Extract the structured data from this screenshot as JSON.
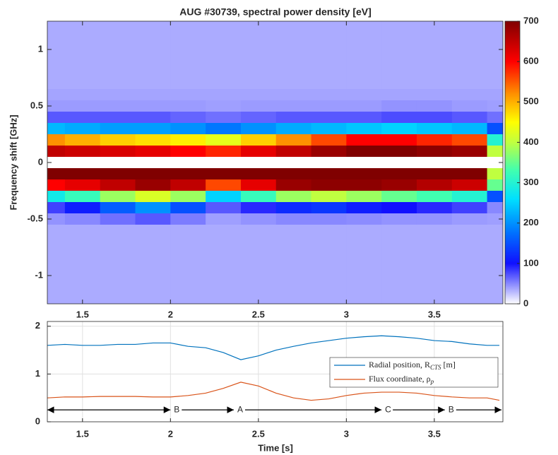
{
  "chart_data": [
    {
      "type": "heatmap",
      "title": "AUG #30739, spectral power density [eV]",
      "ylabel": "Frequency shift [GHz]",
      "x": [
        1.3,
        1.5,
        1.7,
        1.9,
        2.1,
        2.3,
        2.5,
        2.7,
        2.9,
        3.1,
        3.3,
        3.5,
        3.7,
        3.9
      ],
      "y": [
        1.2,
        1.1,
        1.0,
        0.9,
        0.8,
        0.7,
        0.6,
        0.5,
        0.4,
        0.3,
        0.2,
        0.1,
        0.0,
        -0.1,
        -0.2,
        -0.3,
        -0.4,
        -0.5,
        -0.6,
        -0.7,
        -0.8,
        -0.9,
        -1.0,
        -1.1,
        -1.2
      ],
      "z": [
        [
          35,
          35,
          35,
          35,
          35,
          35,
          35,
          35,
          35,
          35,
          35,
          35,
          35,
          35
        ],
        [
          35,
          35,
          35,
          35,
          35,
          35,
          35,
          35,
          35,
          35,
          35,
          35,
          35,
          35
        ],
        [
          35,
          35,
          35,
          35,
          35,
          35,
          35,
          35,
          35,
          35,
          35,
          35,
          35,
          35
        ],
        [
          35,
          35,
          35,
          35,
          35,
          35,
          35,
          35,
          35,
          35,
          35,
          35,
          35,
          35
        ],
        [
          35,
          35,
          35,
          35,
          35,
          35,
          35,
          35,
          35,
          35,
          35,
          35,
          35,
          35
        ],
        [
          35,
          35,
          35,
          35,
          35,
          35,
          35,
          35,
          35,
          35,
          35,
          35,
          35,
          35
        ],
        [
          38,
          38,
          38,
          38,
          38,
          38,
          38,
          38,
          38,
          38,
          38,
          38,
          38,
          38
        ],
        [
          42,
          42,
          42,
          42,
          42,
          40,
          42,
          42,
          42,
          42,
          45,
          45,
          42,
          40
        ],
        [
          70,
          70,
          70,
          70,
          65,
          60,
          65,
          70,
          70,
          70,
          75,
          75,
          70,
          60
        ],
        [
          230,
          220,
          210,
          210,
          200,
          180,
          200,
          220,
          230,
          240,
          250,
          240,
          230,
          150
        ],
        [
          520,
          500,
          480,
          470,
          460,
          430,
          480,
          520,
          560,
          600,
          600,
          580,
          560,
          300
        ],
        [
          650,
          640,
          630,
          620,
          600,
          580,
          620,
          650,
          680,
          700,
          700,
          690,
          680,
          400
        ],
        [
          0,
          0,
          0,
          0,
          0,
          0,
          0,
          0,
          0,
          0,
          0,
          0,
          0,
          0
        ],
        [
          700,
          700,
          700,
          700,
          700,
          700,
          700,
          700,
          700,
          700,
          700,
          700,
          700,
          400
        ],
        [
          600,
          620,
          650,
          680,
          650,
          560,
          620,
          680,
          690,
          690,
          680,
          660,
          640,
          350
        ],
        [
          280,
          320,
          380,
          420,
          380,
          250,
          320,
          380,
          400,
          380,
          350,
          330,
          300,
          150
        ],
        [
          80,
          110,
          160,
          200,
          150,
          70,
          90,
          120,
          130,
          110,
          100,
          90,
          80,
          50
        ],
        [
          45,
          50,
          60,
          70,
          55,
          40,
          45,
          50,
          50,
          48,
          45,
          45,
          42,
          40
        ],
        [
          35,
          35,
          35,
          35,
          35,
          35,
          35,
          35,
          35,
          35,
          35,
          35,
          35,
          35
        ],
        [
          35,
          35,
          35,
          35,
          35,
          35,
          35,
          35,
          35,
          35,
          35,
          35,
          35,
          35
        ],
        [
          35,
          35,
          35,
          35,
          35,
          35,
          35,
          35,
          35,
          35,
          35,
          35,
          35,
          35
        ],
        [
          35,
          35,
          35,
          35,
          35,
          35,
          35,
          35,
          35,
          35,
          35,
          35,
          35,
          35
        ],
        [
          35,
          35,
          35,
          35,
          35,
          35,
          35,
          35,
          35,
          35,
          35,
          35,
          35,
          35
        ],
        [
          35,
          35,
          35,
          35,
          35,
          35,
          35,
          35,
          35,
          35,
          35,
          35,
          35,
          35
        ],
        [
          35,
          35,
          35,
          35,
          35,
          35,
          35,
          35,
          35,
          35,
          35,
          35,
          35,
          35
        ]
      ],
      "xlim": [
        1.3,
        3.89
      ],
      "xticks": [
        1.5,
        2,
        2.5,
        3,
        3.5
      ],
      "ylim": [
        -1.25,
        1.25
      ],
      "yticks": [
        1,
        0.5,
        0,
        -0.5,
        -1
      ],
      "clim": [
        0,
        700
      ],
      "cticks": [
        0,
        100,
        200,
        300,
        400,
        500,
        600,
        700
      ],
      "colormap": [
        {
          "value": 0,
          "color": "#ffffff"
        },
        {
          "value": 100,
          "color": "#1010ff"
        },
        {
          "value": 175,
          "color": "#0070ff"
        },
        {
          "value": 260,
          "color": "#00e0ff"
        },
        {
          "value": 330,
          "color": "#40ffb0"
        },
        {
          "value": 400,
          "color": "#c0ff40"
        },
        {
          "value": 450,
          "color": "#ffff00"
        },
        {
          "value": 520,
          "color": "#ff9000"
        },
        {
          "value": 600,
          "color": "#ff0000"
        },
        {
          "value": 700,
          "color": "#800000"
        }
      ]
    },
    {
      "type": "line",
      "xlabel": "Time [s]",
      "x": [
        1.3,
        1.4,
        1.5,
        1.6,
        1.7,
        1.8,
        1.9,
        2.0,
        2.1,
        2.2,
        2.3,
        2.4,
        2.5,
        2.6,
        2.7,
        2.8,
        2.9,
        3.0,
        3.1,
        3.2,
        3.3,
        3.4,
        3.5,
        3.6,
        3.7,
        3.8,
        3.87
      ],
      "series": [
        {
          "name": "Radial position, R_CTS [m]",
          "color": "#0072bd",
          "values": [
            1.6,
            1.62,
            1.6,
            1.6,
            1.62,
            1.62,
            1.65,
            1.65,
            1.58,
            1.55,
            1.45,
            1.3,
            1.38,
            1.5,
            1.58,
            1.65,
            1.7,
            1.75,
            1.78,
            1.8,
            1.78,
            1.75,
            1.7,
            1.68,
            1.63,
            1.6,
            1.6
          ]
        },
        {
          "name": "Flux coordinate, ρ_p",
          "color": "#d95319",
          "values": [
            0.5,
            0.52,
            0.52,
            0.53,
            0.53,
            0.53,
            0.52,
            0.52,
            0.55,
            0.6,
            0.7,
            0.83,
            0.75,
            0.6,
            0.5,
            0.45,
            0.48,
            0.55,
            0.6,
            0.62,
            0.62,
            0.6,
            0.55,
            0.52,
            0.5,
            0.5,
            0.45
          ]
        }
      ],
      "annotations": [
        {
          "text": "B",
          "x": 2.02
        },
        {
          "text": "A",
          "x": 2.38
        },
        {
          "text": "C",
          "x": 3.22
        },
        {
          "text": "B",
          "x": 3.58
        }
      ],
      "annotation_y": 0.25,
      "xlim": [
        1.3,
        3.89
      ],
      "xticks": [
        1.5,
        2,
        2.5,
        3,
        3.5
      ],
      "ylim": [
        0,
        2.1
      ],
      "yticks": [
        0,
        1,
        2
      ],
      "grid": true
    }
  ]
}
